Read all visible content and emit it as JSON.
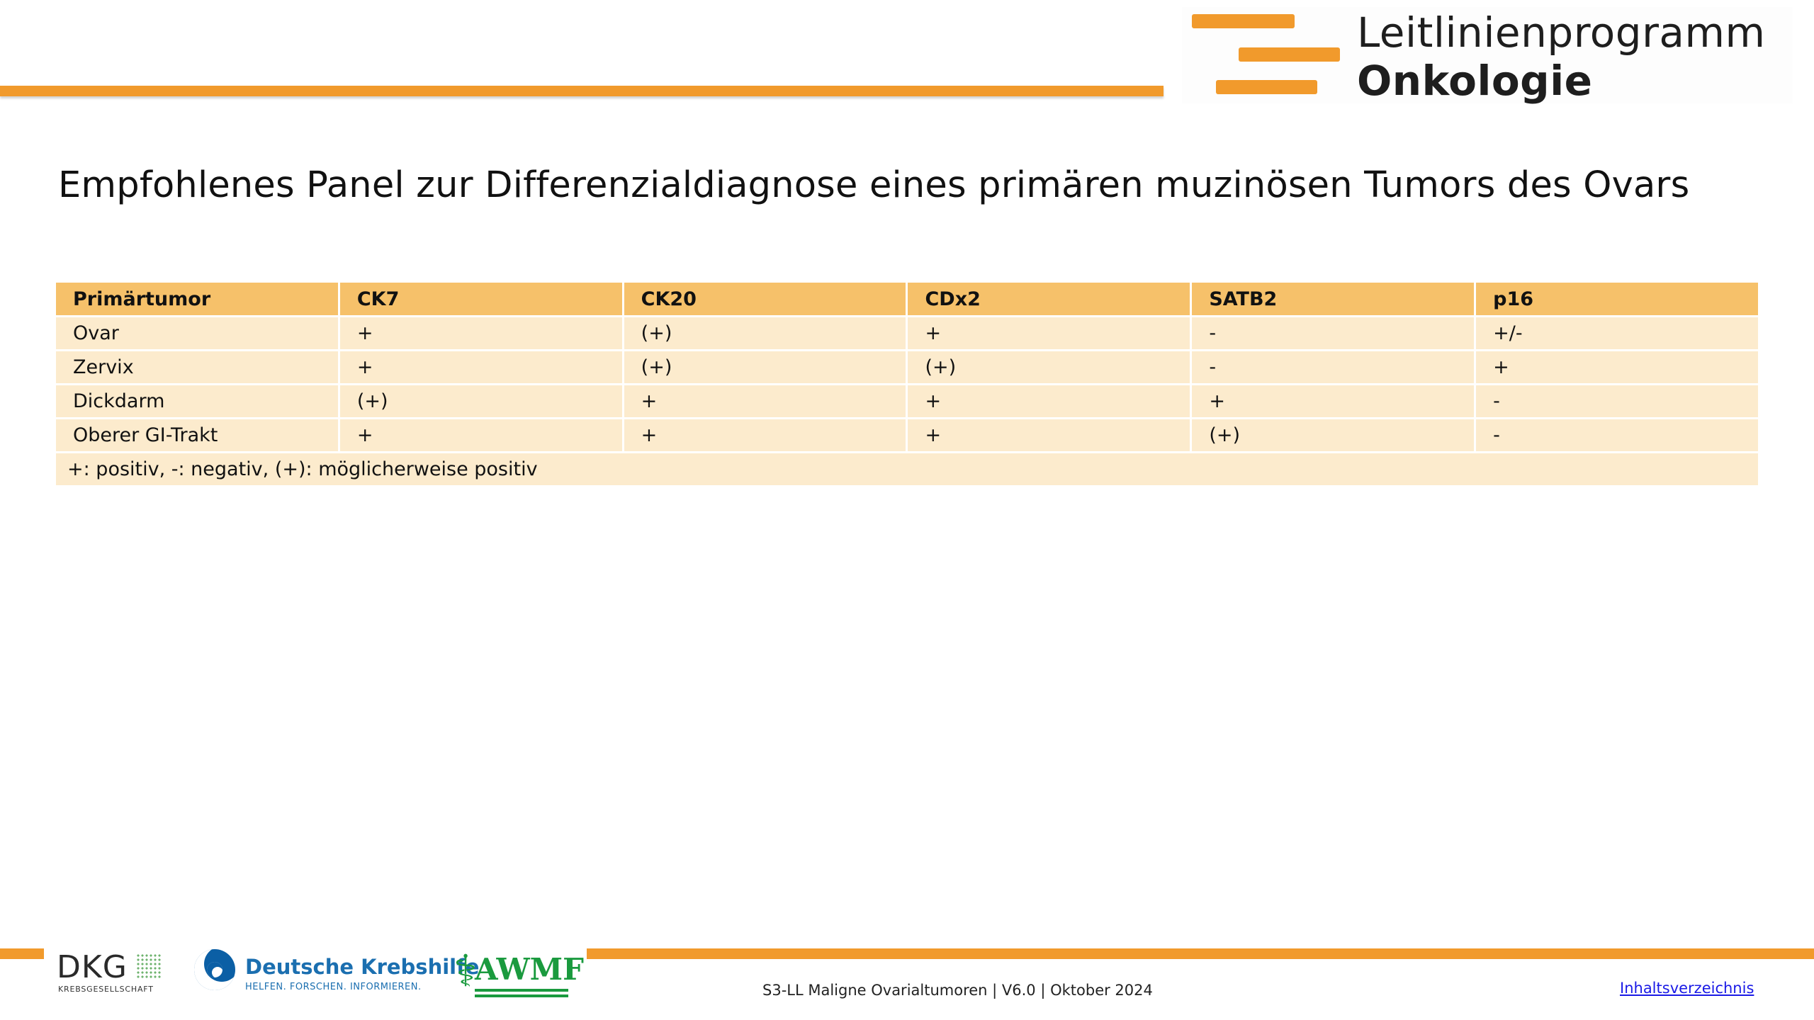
{
  "header": {
    "brand_line1": "Leitlinienprogramm",
    "brand_line2": "Onkologie",
    "accent_color": "#f19a2c"
  },
  "title": "Empfohlenes Panel zur Differenzialdiagnose eines primären muzinösen Tumors des Ovars",
  "table": {
    "columns": [
      "Primärtumor",
      "CK7",
      "CK20",
      "CDx2",
      "SATB2",
      "p16"
    ],
    "rows": [
      [
        "Ovar",
        "+",
        "(+)",
        "+",
        "-",
        "+/-"
      ],
      [
        "Zervix",
        "+",
        "(+)",
        " (+)",
        "-",
        "+"
      ],
      [
        "Dickdarm",
        "(+)",
        "+",
        "+",
        "+",
        "-"
      ],
      [
        "Oberer GI-Trakt",
        "+",
        "+",
        "+",
        "(+)",
        "-"
      ]
    ],
    "legend": "+: positiv, -: negativ, (+): möglicherweise positiv",
    "header_color": "#f6c16a",
    "row_color": "#fcebcd"
  },
  "footer": {
    "logos": {
      "dkg": "DKG",
      "dkg_sub": "KREBSGESELLSCHAFT",
      "dkh": "Deutsche Krebshilfe",
      "dkh_tagline": "HELFEN. FORSCHEN. INFORMIEREN.",
      "awmf": "AWMF"
    },
    "text": "S3-LL Maligne Ovarialtumoren | V6.0 | Oktober 2024",
    "toc_link": "Inhaltsverzeichnis"
  }
}
